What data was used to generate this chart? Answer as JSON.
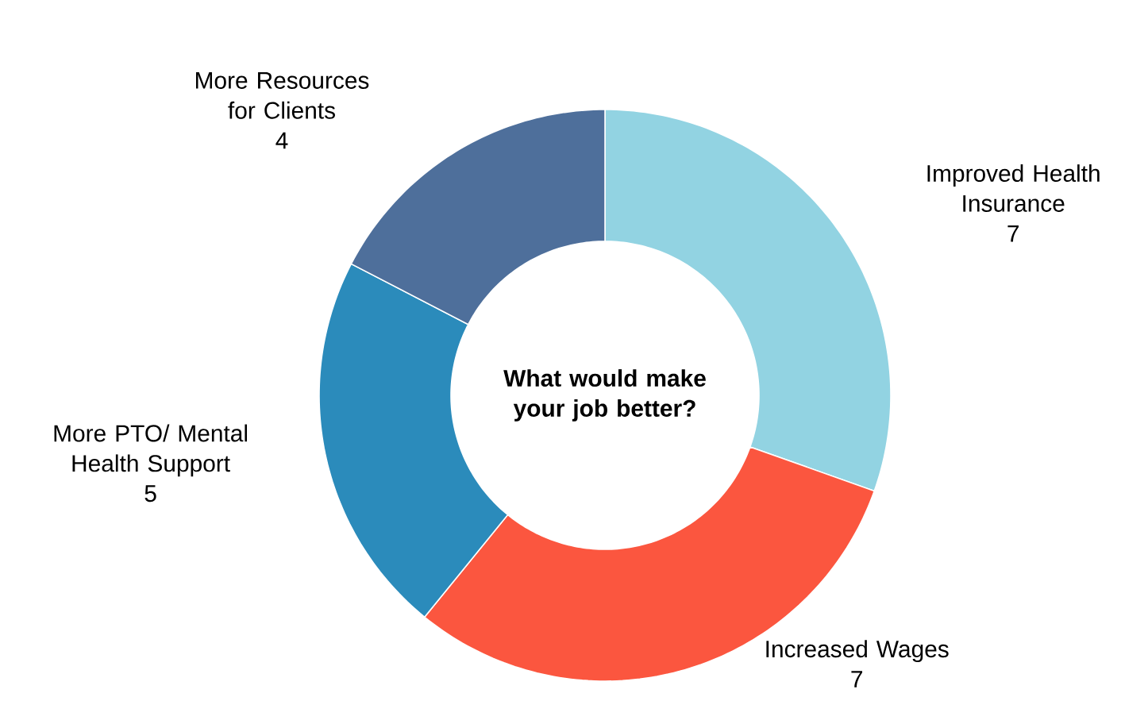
{
  "chart_data": {
    "type": "donut",
    "title": "What would make your job better?",
    "categories": [
      "Improved Health Insurance",
      "Increased Wages",
      "More PTO/ Mental Health Support",
      "More Resources for Clients"
    ],
    "values": [
      7,
      7,
      5,
      4
    ],
    "colors": [
      "#92d3e2",
      "#fb563f",
      "#2b8bbb",
      "#4e6f9b"
    ],
    "data_labels": true
  }
}
